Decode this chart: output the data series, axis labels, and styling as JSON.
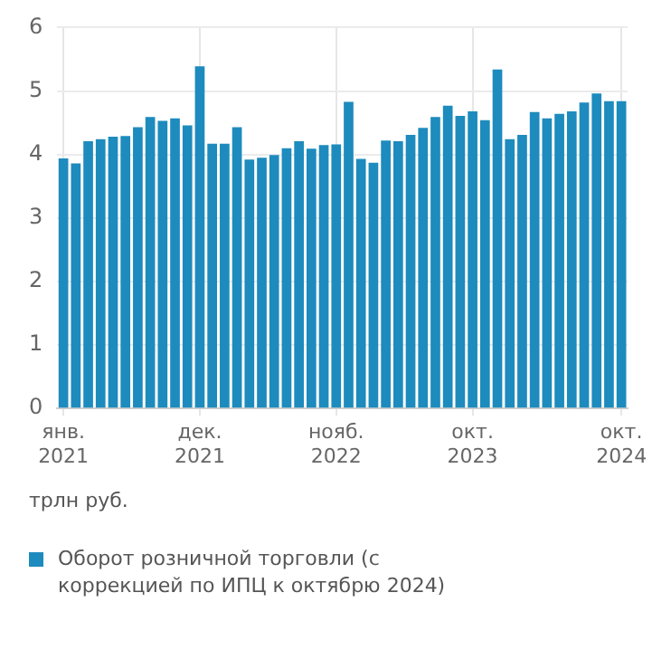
{
  "chart_data": {
    "type": "bar",
    "ylabel": "трлн руб.",
    "categories": [
      "янв.\n2021",
      null,
      null,
      null,
      null,
      null,
      null,
      null,
      null,
      null,
      null,
      "дек.\n2021",
      null,
      null,
      null,
      null,
      null,
      null,
      null,
      null,
      null,
      null,
      "нояб.\n2022",
      null,
      null,
      null,
      null,
      null,
      null,
      null,
      null,
      null,
      null,
      "окт.\n2023",
      null,
      null,
      null,
      null,
      null,
      null,
      null,
      null,
      null,
      null,
      null,
      "окт.\n2024"
    ],
    "series": [
      {
        "name": "Оборот розничной торговли (с коррекцией по ИПЦ к октябрю 2024)",
        "color": "#1d8bbd",
        "values": [
          3.94,
          3.86,
          4.21,
          4.24,
          4.28,
          4.29,
          4.43,
          4.59,
          4.53,
          4.57,
          4.46,
          5.39,
          4.17,
          4.17,
          4.43,
          3.92,
          3.95,
          3.99,
          4.1,
          4.21,
          4.09,
          4.15,
          4.16,
          4.83,
          3.93,
          3.87,
          4.22,
          4.21,
          4.31,
          4.42,
          4.59,
          4.77,
          4.61,
          4.68,
          4.54,
          5.34,
          4.24,
          4.31,
          4.67,
          4.57,
          4.64,
          4.68,
          4.82,
          4.96,
          4.84,
          4.84
        ]
      }
    ],
    "ylim": [
      0,
      6
    ],
    "yticks": [
      0,
      1,
      2,
      3,
      4,
      5,
      6
    ],
    "grid": true,
    "legend": "bottom"
  }
}
